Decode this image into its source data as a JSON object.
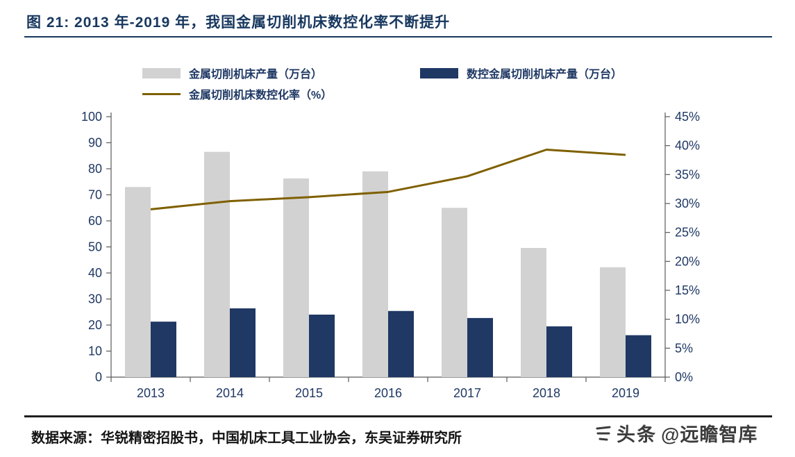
{
  "title": "图 21:  2013 年-2019 年，我国金属切削机床数控化率不断提升",
  "footer": {
    "source": "数据来源：华锐精密招股书，中国机床工具工业协会，东吴证券研究所",
    "watermark_brand": "头条",
    "watermark_handle": "@远瞻智库"
  },
  "colors": {
    "title_navy": "#17375e",
    "axis_label_navy": "#1f3864",
    "axis_line_gray": "#595959",
    "bar_gray": "#d2d2d2",
    "bar_navy": "#1f3864",
    "line_olive": "#7f6000",
    "footer_rule_dark": "#1f1f1f"
  },
  "chart_data": {
    "type": "bar",
    "subtype": "grouped-bars-with-line",
    "categories": [
      "2013",
      "2014",
      "2015",
      "2016",
      "2017",
      "2018",
      "2019"
    ],
    "series": [
      {
        "name": "金属切削机床产量（万台）",
        "type": "bar",
        "axis": "left",
        "color": "#d2d2d2",
        "values": [
          73,
          86.5,
          76.3,
          79,
          65,
          49.6,
          42.2
        ]
      },
      {
        "name": "数控金属切削机床产量（万台）",
        "type": "bar",
        "axis": "left",
        "color": "#1f3864",
        "values": [
          21.3,
          26.4,
          24,
          25.4,
          22.7,
          19.5,
          16.1
        ]
      },
      {
        "name": "金属切削机床数控化率（%）",
        "type": "line",
        "axis": "right",
        "color": "#7f6000",
        "values": [
          29,
          30.4,
          31.1,
          32,
          34.7,
          39.3,
          38.4
        ]
      }
    ],
    "left_axis": {
      "min": 0,
      "max": 100,
      "step": 10,
      "ticks": [
        0,
        10,
        20,
        30,
        40,
        50,
        60,
        70,
        80,
        90,
        100
      ]
    },
    "right_axis": {
      "min": 0,
      "max": 45,
      "step": 5,
      "suffix": "%",
      "ticks": [
        0,
        5,
        10,
        15,
        20,
        25,
        30,
        35,
        40,
        45
      ]
    },
    "legend_position": "top",
    "grid": false,
    "xlabel": "",
    "ylabel_left": "",
    "ylabel_right": ""
  }
}
